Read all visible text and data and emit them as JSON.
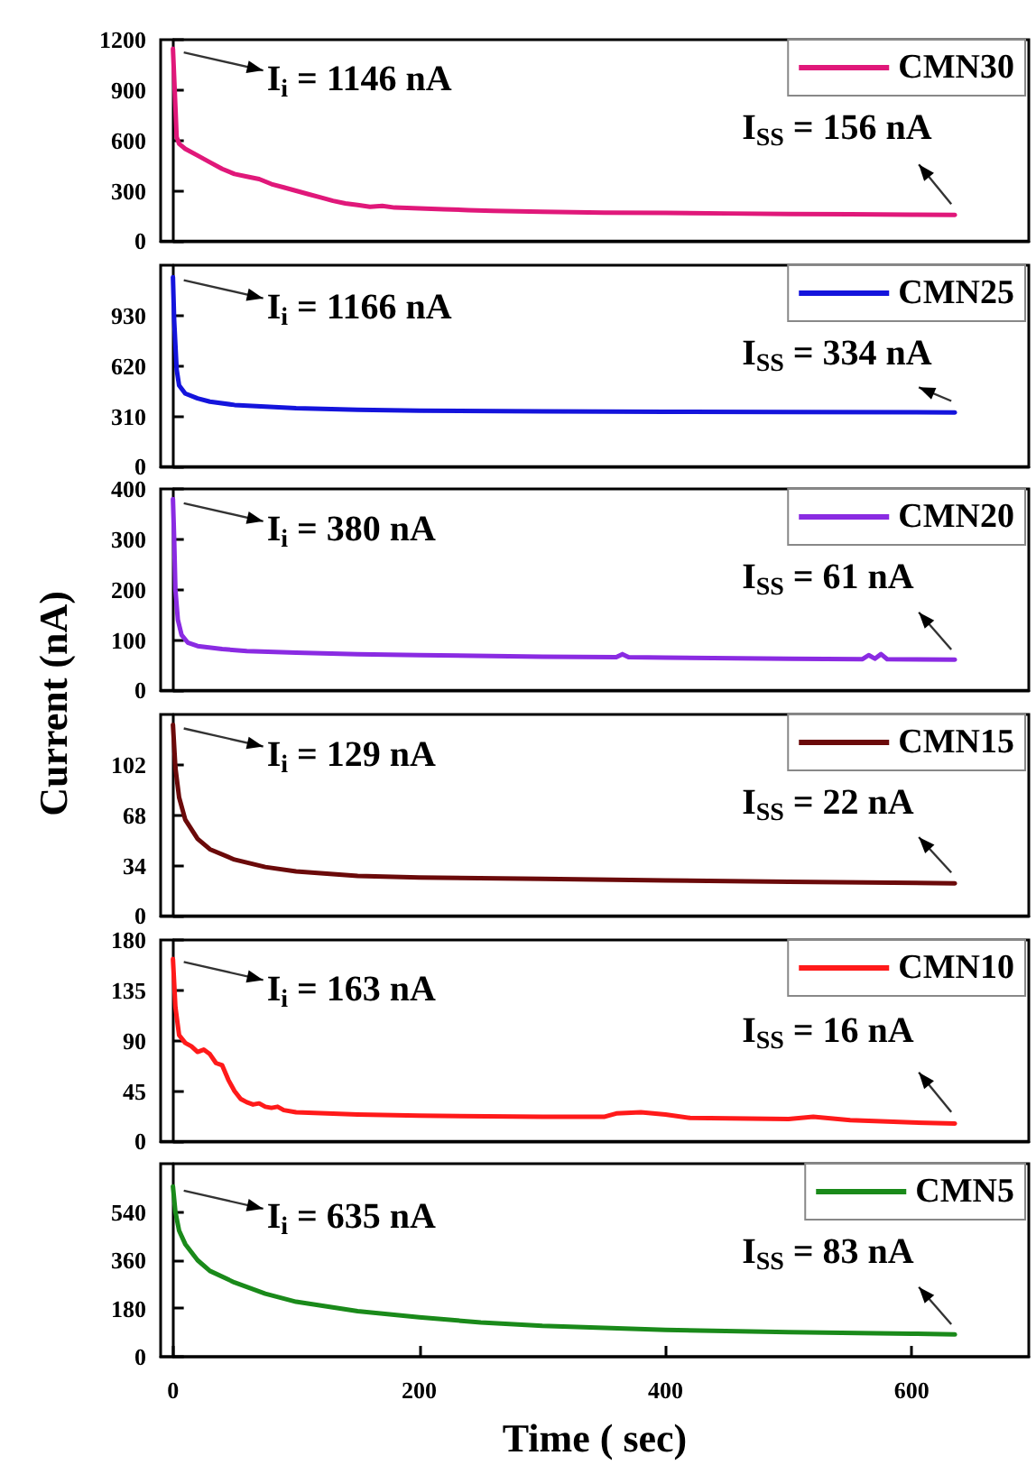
{
  "chart_data": [
    {
      "type": "line",
      "legend": "top right",
      "tick_labels": "y",
      "xlim": [
        -10,
        695
      ],
      "xticks": [
        0,
        200,
        400,
        600
      ],
      "ylim": [
        0,
        1200
      ],
      "yticks": [
        0,
        300,
        600,
        900,
        1200
      ],
      "annotations": [
        "I$_{i}$ = 1146 nA",
        "I$_{SS}$ = 156 nA"
      ],
      "series": [
        {
          "name": "CMN30",
          "color": "#e0187a",
          "x": [
            0,
            2,
            3,
            5,
            10,
            20,
            30,
            40,
            50,
            60,
            70,
            80,
            90,
            100,
            110,
            120,
            130,
            140,
            150,
            160,
            170,
            180,
            200,
            220,
            240,
            260,
            300,
            350,
            400,
            450,
            500,
            550,
            600,
            635
          ],
          "values": [
            1146,
            800,
            620,
            580,
            550,
            510,
            470,
            430,
            400,
            385,
            370,
            340,
            320,
            300,
            280,
            260,
            240,
            225,
            215,
            205,
            210,
            200,
            195,
            190,
            185,
            180,
            175,
            170,
            168,
            165,
            162,
            160,
            158,
            156
          ]
        }
      ]
    },
    {
      "type": "line",
      "legend": "top right",
      "tick_labels": "y",
      "xlim": [
        -10,
        695
      ],
      "xticks": [
        0,
        200,
        400,
        600
      ],
      "ylim": [
        0,
        1240
      ],
      "yticks": [
        0,
        310,
        620,
        930
      ],
      "annotations": [
        "I$_{i}$ = 1166 nA",
        "I$_{SS}$ = 334 nA"
      ],
      "series": [
        {
          "name": "CMN25",
          "color": "#1414dc",
          "x": [
            0,
            1,
            3,
            5,
            10,
            20,
            30,
            50,
            75,
            100,
            150,
            200,
            300,
            400,
            500,
            635
          ],
          "values": [
            1166,
            900,
            600,
            500,
            450,
            420,
            400,
            380,
            370,
            360,
            350,
            345,
            340,
            338,
            336,
            334
          ]
        }
      ]
    },
    {
      "type": "line",
      "legend": "top right",
      "tick_labels": "y",
      "ylabel": "Current (nA)",
      "xlim": [
        -10,
        695
      ],
      "xticks": [
        0,
        200,
        400,
        600
      ],
      "ylim": [
        0,
        400
      ],
      "yticks": [
        0,
        100,
        200,
        300,
        400
      ],
      "annotations": [
        "I$_{i}$ = 380 nA",
        "I$_{SS}$ = 61 nA"
      ],
      "series": [
        {
          "name": "CMN20",
          "color": "#8a2be2",
          "x": [
            0,
            1,
            2,
            4,
            7,
            12,
            20,
            40,
            60,
            100,
            150,
            200,
            300,
            360,
            365,
            370,
            400,
            500,
            560,
            565,
            570,
            575,
            580,
            635
          ],
          "values": [
            380,
            300,
            200,
            140,
            110,
            95,
            88,
            82,
            78,
            75,
            72,
            70,
            67,
            66,
            72,
            66,
            65,
            63,
            62,
            70,
            63,
            72,
            62,
            61
          ]
        }
      ]
    },
    {
      "type": "line",
      "legend": "top right",
      "tick_labels": "y",
      "xlim": [
        -10,
        695
      ],
      "xticks": [
        0,
        200,
        400,
        600
      ],
      "ylim": [
        0,
        136
      ],
      "yticks": [
        0,
        34,
        68,
        102
      ],
      "annotations": [
        "I$_{i}$ = 129 nA",
        "I$_{SS}$ = 22 nA"
      ],
      "series": [
        {
          "name": "CMN15",
          "color": "#6b0a0a",
          "x": [
            0,
            2,
            5,
            10,
            20,
            30,
            50,
            75,
            100,
            150,
            200,
            300,
            400,
            500,
            635
          ],
          "values": [
            129,
            100,
            80,
            65,
            52,
            45,
            38,
            33,
            30,
            27,
            26,
            25,
            24,
            23,
            22
          ]
        }
      ]
    },
    {
      "type": "line",
      "legend": "top right",
      "tick_labels": "y",
      "xlim": [
        -10,
        695
      ],
      "xticks": [
        0,
        200,
        400,
        600
      ],
      "ylim": [
        0,
        180
      ],
      "yticks": [
        0,
        45,
        90,
        135,
        180
      ],
      "annotations": [
        "I$_{i}$ = 163 nA",
        "I$_{SS}$ = 16 nA"
      ],
      "series": [
        {
          "name": "CMN10",
          "color": "#ff1a1a",
          "x": [
            0,
            2,
            5,
            10,
            15,
            20,
            25,
            30,
            35,
            40,
            45,
            50,
            55,
            60,
            65,
            70,
            75,
            80,
            85,
            90,
            100,
            150,
            200,
            300,
            350,
            360,
            380,
            400,
            420,
            500,
            520,
            550,
            600,
            635
          ],
          "values": [
            163,
            120,
            95,
            88,
            85,
            80,
            82,
            78,
            70,
            68,
            55,
            45,
            38,
            35,
            33,
            34,
            31,
            30,
            31,
            28,
            26,
            24,
            23,
            22,
            22,
            25,
            26,
            24,
            21,
            20,
            22,
            19,
            17,
            16
          ]
        }
      ]
    },
    {
      "type": "line",
      "legend": "top right",
      "xlabel": "Time ( sec)",
      "xlim": [
        -10,
        695
      ],
      "xticks": [
        0,
        200,
        400,
        600
      ],
      "ylim": [
        0,
        720
      ],
      "yticks": [
        0,
        180,
        360,
        540
      ],
      "annotations": [
        "I$_{i}$ = 635 nA",
        "I$_{SS}$ = 83 nA"
      ],
      "series": [
        {
          "name": "CMN5",
          "color": "#1a8a1a",
          "x": [
            0,
            2,
            5,
            10,
            20,
            30,
            50,
            75,
            100,
            150,
            200,
            250,
            300,
            400,
            500,
            600,
            635
          ],
          "values": [
            635,
            540,
            470,
            420,
            360,
            320,
            277,
            235,
            205,
            170,
            147,
            128,
            115,
            100,
            92,
            86,
            83
          ]
        }
      ]
    }
  ]
}
